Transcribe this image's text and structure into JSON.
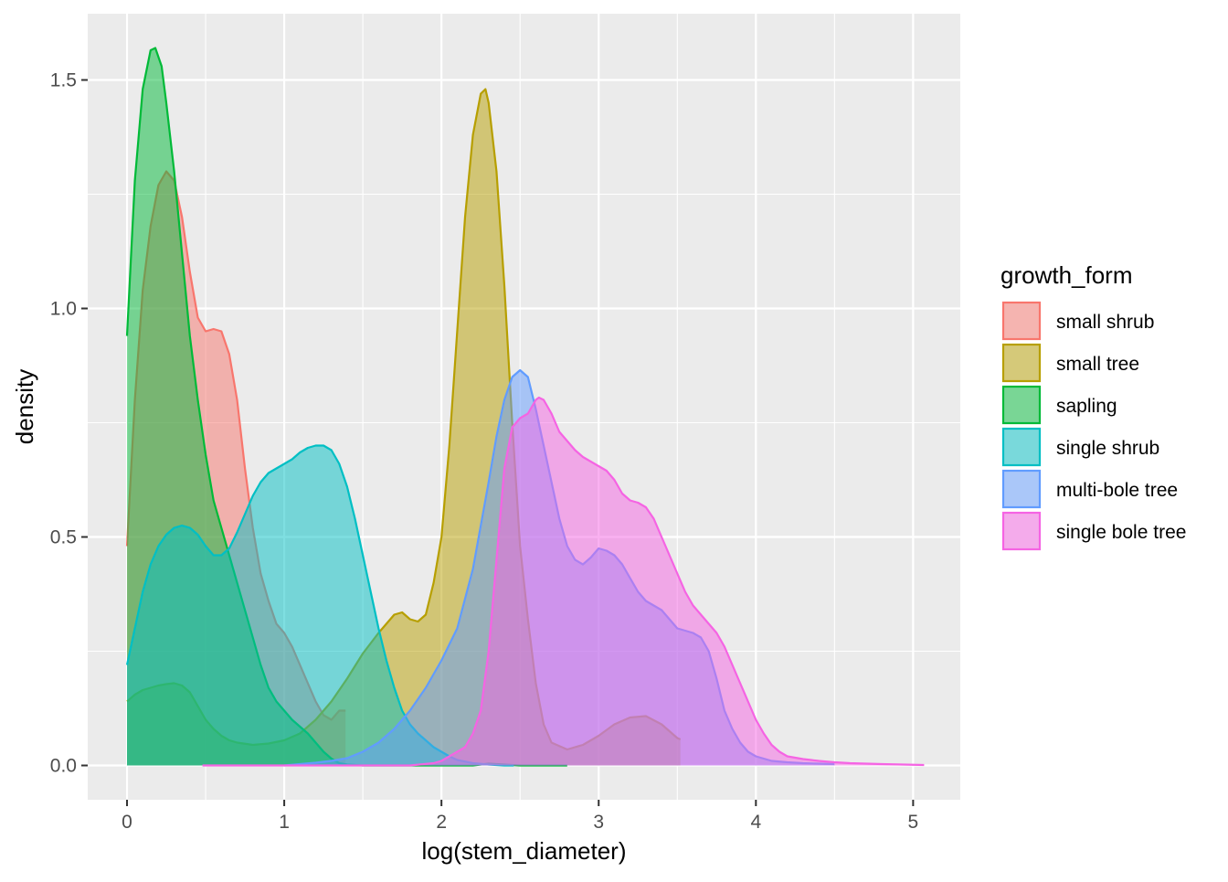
{
  "chart_data": {
    "type": "area",
    "title": "",
    "xlabel": "log(stem_diameter)",
    "ylabel": "density",
    "xlim": [
      -0.25,
      5.3
    ],
    "ylim": [
      -0.075,
      1.645
    ],
    "x_ticks": [
      0,
      1,
      2,
      3,
      4,
      5
    ],
    "y_ticks": [
      0.0,
      0.5,
      1.0,
      1.5
    ],
    "x_tick_labels": [
      "0",
      "1",
      "2",
      "3",
      "4",
      "5"
    ],
    "y_tick_labels": [
      "0.0",
      "0.5",
      "1.0",
      "1.5"
    ],
    "grid": true,
    "legend": {
      "title": "growth_form",
      "position": "right"
    },
    "series": [
      {
        "name": "small shrub",
        "color": "#F8766D",
        "points": [
          [
            0,
            0.48
          ],
          [
            0.05,
            0.8
          ],
          [
            0.1,
            1.04
          ],
          [
            0.15,
            1.18
          ],
          [
            0.2,
            1.27
          ],
          [
            0.25,
            1.3
          ],
          [
            0.3,
            1.28
          ],
          [
            0.35,
            1.2
          ],
          [
            0.4,
            1.08
          ],
          [
            0.45,
            0.98
          ],
          [
            0.5,
            0.95
          ],
          [
            0.55,
            0.955
          ],
          [
            0.6,
            0.95
          ],
          [
            0.65,
            0.9
          ],
          [
            0.7,
            0.8
          ],
          [
            0.75,
            0.65
          ],
          [
            0.8,
            0.52
          ],
          [
            0.85,
            0.42
          ],
          [
            0.9,
            0.36
          ],
          [
            0.95,
            0.31
          ],
          [
            1.0,
            0.29
          ],
          [
            1.05,
            0.26
          ],
          [
            1.1,
            0.22
          ],
          [
            1.15,
            0.18
          ],
          [
            1.2,
            0.14
          ],
          [
            1.25,
            0.11
          ],
          [
            1.3,
            0.1
          ],
          [
            1.35,
            0.12
          ],
          [
            1.39,
            0.12
          ]
        ]
      },
      {
        "name": "small tree",
        "color": "#B79F00",
        "points": [
          [
            0,
            0.14
          ],
          [
            0.05,
            0.155
          ],
          [
            0.1,
            0.165
          ],
          [
            0.15,
            0.17
          ],
          [
            0.2,
            0.175
          ],
          [
            0.25,
            0.178
          ],
          [
            0.3,
            0.18
          ],
          [
            0.35,
            0.175
          ],
          [
            0.4,
            0.16
          ],
          [
            0.45,
            0.13
          ],
          [
            0.5,
            0.1
          ],
          [
            0.55,
            0.08
          ],
          [
            0.6,
            0.065
          ],
          [
            0.65,
            0.055
          ],
          [
            0.7,
            0.05
          ],
          [
            0.8,
            0.045
          ],
          [
            0.9,
            0.048
          ],
          [
            1.0,
            0.055
          ],
          [
            1.1,
            0.07
          ],
          [
            1.2,
            0.1
          ],
          [
            1.3,
            0.14
          ],
          [
            1.4,
            0.19
          ],
          [
            1.5,
            0.245
          ],
          [
            1.6,
            0.29
          ],
          [
            1.7,
            0.33
          ],
          [
            1.75,
            0.335
          ],
          [
            1.8,
            0.32
          ],
          [
            1.85,
            0.315
          ],
          [
            1.9,
            0.33
          ],
          [
            1.95,
            0.4
          ],
          [
            2.0,
            0.5
          ],
          [
            2.05,
            0.7
          ],
          [
            2.1,
            0.95
          ],
          [
            2.15,
            1.2
          ],
          [
            2.2,
            1.38
          ],
          [
            2.25,
            1.47
          ],
          [
            2.28,
            1.48
          ],
          [
            2.3,
            1.45
          ],
          [
            2.35,
            1.3
          ],
          [
            2.4,
            1.05
          ],
          [
            2.45,
            0.75
          ],
          [
            2.5,
            0.48
          ],
          [
            2.55,
            0.32
          ],
          [
            2.6,
            0.18
          ],
          [
            2.65,
            0.09
          ],
          [
            2.7,
            0.05
          ],
          [
            2.8,
            0.035
          ],
          [
            2.9,
            0.045
          ],
          [
            3.0,
            0.065
          ],
          [
            3.1,
            0.09
          ],
          [
            3.2,
            0.105
          ],
          [
            3.3,
            0.108
          ],
          [
            3.4,
            0.09
          ],
          [
            3.5,
            0.06
          ],
          [
            3.52,
            0.057
          ]
        ]
      },
      {
        "name": "sapling",
        "color": "#00BA38",
        "points": [
          [
            0,
            0.94
          ],
          [
            0.05,
            1.28
          ],
          [
            0.1,
            1.48
          ],
          [
            0.15,
            1.565
          ],
          [
            0.18,
            1.57
          ],
          [
            0.22,
            1.53
          ],
          [
            0.25,
            1.45
          ],
          [
            0.3,
            1.3
          ],
          [
            0.35,
            1.12
          ],
          [
            0.4,
            0.94
          ],
          [
            0.45,
            0.8
          ],
          [
            0.5,
            0.68
          ],
          [
            0.55,
            0.58
          ],
          [
            0.6,
            0.52
          ],
          [
            0.65,
            0.46
          ],
          [
            0.7,
            0.4
          ],
          [
            0.75,
            0.34
          ],
          [
            0.8,
            0.28
          ],
          [
            0.85,
            0.22
          ],
          [
            0.9,
            0.17
          ],
          [
            0.95,
            0.14
          ],
          [
            1.0,
            0.12
          ],
          [
            1.05,
            0.1
          ],
          [
            1.1,
            0.085
          ],
          [
            1.15,
            0.07
          ],
          [
            1.2,
            0.05
          ],
          [
            1.25,
            0.03
          ],
          [
            1.3,
            0.015
          ],
          [
            1.35,
            0.005
          ],
          [
            1.4,
            0.002
          ],
          [
            1.5,
            0.0
          ],
          [
            2.2,
            0.0
          ],
          [
            2.3,
            0.004
          ],
          [
            2.4,
            0.002
          ],
          [
            2.5,
            0.0
          ],
          [
            2.8,
            0.0
          ]
        ]
      },
      {
        "name": "single shrub",
        "color": "#00BFC4",
        "points": [
          [
            0,
            0.22
          ],
          [
            0.05,
            0.3
          ],
          [
            0.1,
            0.38
          ],
          [
            0.15,
            0.44
          ],
          [
            0.2,
            0.48
          ],
          [
            0.25,
            0.505
          ],
          [
            0.3,
            0.52
          ],
          [
            0.35,
            0.525
          ],
          [
            0.4,
            0.52
          ],
          [
            0.45,
            0.505
          ],
          [
            0.5,
            0.48
          ],
          [
            0.55,
            0.46
          ],
          [
            0.6,
            0.46
          ],
          [
            0.65,
            0.475
          ],
          [
            0.7,
            0.51
          ],
          [
            0.75,
            0.55
          ],
          [
            0.8,
            0.59
          ],
          [
            0.85,
            0.62
          ],
          [
            0.9,
            0.64
          ],
          [
            0.95,
            0.65
          ],
          [
            1.0,
            0.66
          ],
          [
            1.05,
            0.67
          ],
          [
            1.1,
            0.685
          ],
          [
            1.15,
            0.695
          ],
          [
            1.2,
            0.7
          ],
          [
            1.25,
            0.7
          ],
          [
            1.3,
            0.69
          ],
          [
            1.35,
            0.66
          ],
          [
            1.4,
            0.61
          ],
          [
            1.45,
            0.54
          ],
          [
            1.5,
            0.46
          ],
          [
            1.55,
            0.38
          ],
          [
            1.6,
            0.3
          ],
          [
            1.65,
            0.23
          ],
          [
            1.7,
            0.17
          ],
          [
            1.75,
            0.12
          ],
          [
            1.8,
            0.09
          ],
          [
            1.85,
            0.07
          ],
          [
            1.9,
            0.055
          ],
          [
            1.95,
            0.04
          ],
          [
            2.0,
            0.03
          ],
          [
            2.05,
            0.02
          ],
          [
            2.1,
            0.012
          ],
          [
            2.2,
            0.005
          ],
          [
            2.3,
            0.002
          ],
          [
            2.4,
            0.0
          ],
          [
            2.46,
            0.0
          ]
        ]
      },
      {
        "name": "multi-bole tree",
        "color": "#619CFF",
        "points": [
          [
            1.0,
            0.0
          ],
          [
            1.1,
            0.003
          ],
          [
            1.2,
            0.006
          ],
          [
            1.3,
            0.01
          ],
          [
            1.4,
            0.016
          ],
          [
            1.5,
            0.03
          ],
          [
            1.6,
            0.05
          ],
          [
            1.7,
            0.08
          ],
          [
            1.8,
            0.12
          ],
          [
            1.9,
            0.17
          ],
          [
            2.0,
            0.23
          ],
          [
            2.1,
            0.3
          ],
          [
            2.2,
            0.43
          ],
          [
            2.3,
            0.62
          ],
          [
            2.35,
            0.72
          ],
          [
            2.4,
            0.8
          ],
          [
            2.45,
            0.85
          ],
          [
            2.5,
            0.865
          ],
          [
            2.55,
            0.85
          ],
          [
            2.6,
            0.78
          ],
          [
            2.65,
            0.7
          ],
          [
            2.7,
            0.62
          ],
          [
            2.75,
            0.54
          ],
          [
            2.8,
            0.48
          ],
          [
            2.85,
            0.45
          ],
          [
            2.9,
            0.44
          ],
          [
            2.95,
            0.455
          ],
          [
            3.0,
            0.475
          ],
          [
            3.05,
            0.47
          ],
          [
            3.1,
            0.46
          ],
          [
            3.15,
            0.44
          ],
          [
            3.2,
            0.41
          ],
          [
            3.25,
            0.38
          ],
          [
            3.3,
            0.36
          ],
          [
            3.35,
            0.35
          ],
          [
            3.4,
            0.34
          ],
          [
            3.45,
            0.32
          ],
          [
            3.5,
            0.3
          ],
          [
            3.55,
            0.295
          ],
          [
            3.6,
            0.29
          ],
          [
            3.65,
            0.28
          ],
          [
            3.7,
            0.25
          ],
          [
            3.75,
            0.19
          ],
          [
            3.8,
            0.12
          ],
          [
            3.85,
            0.08
          ],
          [
            3.9,
            0.05
          ],
          [
            3.95,
            0.03
          ],
          [
            4.0,
            0.02
          ],
          [
            4.1,
            0.01
          ],
          [
            4.2,
            0.007
          ],
          [
            4.3,
            0.005
          ],
          [
            4.4,
            0.004
          ],
          [
            4.5,
            0.003
          ]
        ]
      },
      {
        "name": "single bole tree",
        "color": "#F564E3",
        "points": [
          [
            0.48,
            0.0
          ],
          [
            1.0,
            0.0
          ],
          [
            1.5,
            0.0
          ],
          [
            1.8,
            0.0
          ],
          [
            1.95,
            0.005
          ],
          [
            2.0,
            0.01
          ],
          [
            2.05,
            0.02
          ],
          [
            2.1,
            0.03
          ],
          [
            2.15,
            0.04
          ],
          [
            2.2,
            0.07
          ],
          [
            2.25,
            0.12
          ],
          [
            2.3,
            0.25
          ],
          [
            2.35,
            0.45
          ],
          [
            2.4,
            0.65
          ],
          [
            2.45,
            0.74
          ],
          [
            2.5,
            0.76
          ],
          [
            2.55,
            0.77
          ],
          [
            2.6,
            0.8
          ],
          [
            2.62,
            0.805
          ],
          [
            2.65,
            0.8
          ],
          [
            2.7,
            0.77
          ],
          [
            2.75,
            0.73
          ],
          [
            2.8,
            0.71
          ],
          [
            2.85,
            0.69
          ],
          [
            2.9,
            0.675
          ],
          [
            2.95,
            0.665
          ],
          [
            3.0,
            0.655
          ],
          [
            3.05,
            0.645
          ],
          [
            3.1,
            0.625
          ],
          [
            3.15,
            0.595
          ],
          [
            3.2,
            0.58
          ],
          [
            3.25,
            0.575
          ],
          [
            3.3,
            0.565
          ],
          [
            3.35,
            0.54
          ],
          [
            3.4,
            0.5
          ],
          [
            3.45,
            0.46
          ],
          [
            3.5,
            0.42
          ],
          [
            3.55,
            0.38
          ],
          [
            3.6,
            0.35
          ],
          [
            3.65,
            0.33
          ],
          [
            3.7,
            0.31
          ],
          [
            3.75,
            0.29
          ],
          [
            3.8,
            0.26
          ],
          [
            3.85,
            0.22
          ],
          [
            3.9,
            0.18
          ],
          [
            3.95,
            0.14
          ],
          [
            4.0,
            0.1
          ],
          [
            4.05,
            0.07
          ],
          [
            4.1,
            0.045
          ],
          [
            4.15,
            0.03
          ],
          [
            4.2,
            0.02
          ],
          [
            4.3,
            0.014
          ],
          [
            4.4,
            0.01
          ],
          [
            4.5,
            0.007
          ],
          [
            4.6,
            0.005
          ],
          [
            4.8,
            0.003
          ],
          [
            5.07,
            0.001
          ]
        ]
      }
    ]
  }
}
